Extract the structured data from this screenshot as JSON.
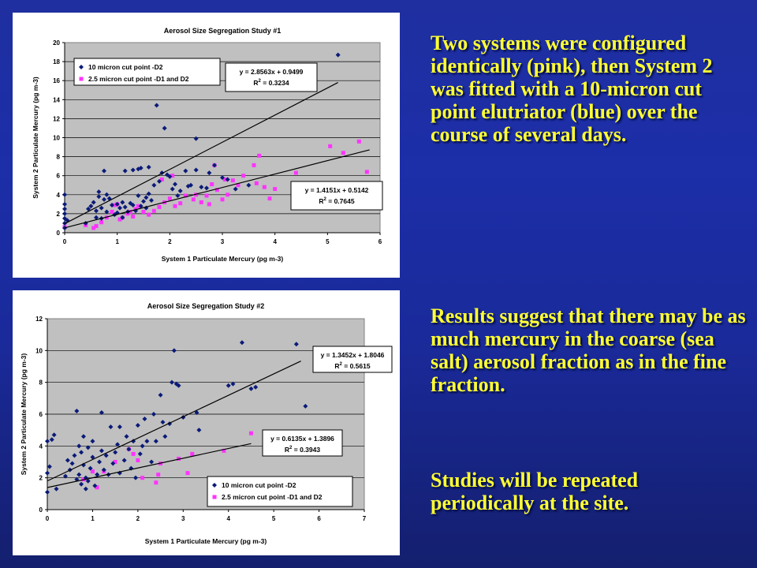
{
  "slide_text": {
    "paragraph1": "Two systems were configured identically (pink), then System 2 was fitted with a 10-micron cut point elutriator (blue) over the course of several days.",
    "paragraph2": "Results suggest that there may be as much mercury in the coarse (sea salt) aerosol fraction as in the fine fraction.",
    "paragraph3": "Studies will be repeated periodically at the site."
  },
  "colors": {
    "series_blue": "#0a1a78",
    "series_pink": "#ff33ff",
    "plot_bg": "#c0c0c0"
  },
  "chart_data": [
    {
      "type": "scatter",
      "title": "Aerosol Size Segregation Study #1",
      "xlabel": "System 1 Particulate Mercury (pg m-3)",
      "ylabel": "System 2 Particulate Mercury (pg m-3)",
      "xlim": [
        0,
        6
      ],
      "ylim": [
        0,
        20
      ],
      "xticks": [
        0,
        1,
        2,
        3,
        4,
        5,
        6
      ],
      "yticks": [
        0,
        2,
        4,
        6,
        8,
        10,
        12,
        14,
        16,
        18,
        20
      ],
      "grid": true,
      "legend_position": "top-left",
      "series": [
        {
          "name": "10 micron cut point -D2",
          "marker": "diamond",
          "color": "#0a1a78",
          "trendline": {
            "equation": "y = 2.8563x + 0.9499",
            "r2": "R",
            "r2_sup": "2",
            "r2_val": " = 0.3234",
            "slope": 2.8563,
            "intercept": 0.9499,
            "x_range": [
              0,
              5.2
            ]
          },
          "points": [
            [
              0,
              0.5
            ],
            [
              0,
              1
            ],
            [
              0,
              1.5
            ],
            [
              0,
              2
            ],
            [
              0,
              2.5
            ],
            [
              0,
              3
            ],
            [
              0,
              4
            ],
            [
              0.05,
              1.3
            ],
            [
              0.4,
              1
            ],
            [
              0.45,
              2.5
            ],
            [
              0.5,
              2.8
            ],
            [
              0.55,
              3.2
            ],
            [
              0.6,
              1.6
            ],
            [
              0.6,
              2.3
            ],
            [
              0.65,
              3.8
            ],
            [
              0.65,
              4.3
            ],
            [
              0.7,
              1.5
            ],
            [
              0.7,
              2.6
            ],
            [
              0.75,
              3.5
            ],
            [
              0.75,
              6.5
            ],
            [
              0.8,
              2.2
            ],
            [
              0.8,
              4
            ],
            [
              0.85,
              3.6
            ],
            [
              0.9,
              2.9
            ],
            [
              0.95,
              1.9
            ],
            [
              1.0,
              3
            ],
            [
              1.0,
              2.1
            ],
            [
              1.05,
              2.6
            ],
            [
              1.1,
              3.2
            ],
            [
              1.1,
              1.6
            ],
            [
              1.15,
              2.7
            ],
            [
              1.2,
              2.2
            ],
            [
              1.15,
              6.5
            ],
            [
              1.25,
              3.1
            ],
            [
              1.3,
              2.9
            ],
            [
              1.35,
              2.3
            ],
            [
              1.3,
              6.6
            ],
            [
              1.4,
              3.9
            ],
            [
              1.4,
              6.7
            ],
            [
              1.45,
              2.8
            ],
            [
              1.45,
              6.8
            ],
            [
              1.5,
              3.3
            ],
            [
              1.55,
              2.6
            ],
            [
              1.55,
              3.7
            ],
            [
              1.6,
              4.1
            ],
            [
              1.6,
              6.9
            ],
            [
              1.65,
              3.4
            ],
            [
              1.7,
              5.0
            ],
            [
              1.75,
              13.4
            ],
            [
              1.8,
              5.4
            ],
            [
              1.85,
              6.3
            ],
            [
              1.9,
              11.0
            ],
            [
              1.95,
              6.1
            ],
            [
              2.0,
              5.9
            ],
            [
              2.05,
              4.6
            ],
            [
              2.1,
              5.1
            ],
            [
              2.15,
              3.9
            ],
            [
              2.2,
              4.4
            ],
            [
              2.3,
              6.5
            ],
            [
              2.35,
              4.9
            ],
            [
              2.4,
              5.0
            ],
            [
              2.5,
              6.6
            ],
            [
              2.5,
              9.9
            ],
            [
              2.6,
              4.8
            ],
            [
              2.7,
              4.7
            ],
            [
              2.75,
              6.3
            ],
            [
              2.85,
              7.1
            ],
            [
              3.0,
              5.8
            ],
            [
              3.1,
              5.6
            ],
            [
              3.25,
              4.6
            ],
            [
              3.5,
              5.0
            ],
            [
              5.2,
              18.7
            ]
          ]
        },
        {
          "name": "2.5 micron cut point -D1 and D2",
          "marker": "square",
          "color": "#ff33ff",
          "trendline": {
            "equation": "y = 1.4151x + 0.5142",
            "r2": "R",
            "r2_sup": "2",
            "r2_val": " = 0.7645",
            "slope": 1.4151,
            "intercept": 0.5142,
            "x_range": [
              0,
              5.8
            ]
          },
          "points": [
            [
              0,
              0.6
            ],
            [
              0.4,
              0.8
            ],
            [
              0.55,
              0.5
            ],
            [
              0.6,
              0.7
            ],
            [
              0.7,
              1.1
            ],
            [
              0.8,
              1.6
            ],
            [
              0.9,
              2.2
            ],
            [
              0.95,
              2.9
            ],
            [
              1.0,
              3.0
            ],
            [
              1.05,
              1.4
            ],
            [
              1.1,
              1.6
            ],
            [
              1.2,
              2.0
            ],
            [
              1.25,
              2.2
            ],
            [
              1.3,
              1.7
            ],
            [
              1.35,
              2.5
            ],
            [
              1.4,
              2.8
            ],
            [
              1.5,
              2.2
            ],
            [
              1.6,
              1.9
            ],
            [
              1.7,
              2.3
            ],
            [
              1.8,
              2.7
            ],
            [
              1.85,
              5.6
            ],
            [
              1.9,
              3.2
            ],
            [
              2.0,
              3.6
            ],
            [
              2.05,
              6.0
            ],
            [
              2.1,
              2.8
            ],
            [
              2.2,
              3.1
            ],
            [
              2.3,
              3.9
            ],
            [
              2.45,
              3.5
            ],
            [
              2.5,
              4.0
            ],
            [
              2.6,
              3.2
            ],
            [
              2.7,
              3.9
            ],
            [
              2.75,
              3.0
            ],
            [
              2.8,
              5.1
            ],
            [
              2.85,
              7.1
            ],
            [
              2.9,
              4.5
            ],
            [
              3.0,
              3.5
            ],
            [
              3.05,
              5.6
            ],
            [
              3.1,
              4.0
            ],
            [
              3.2,
              5.5
            ],
            [
              3.3,
              5.0
            ],
            [
              3.4,
              6.0
            ],
            [
              3.6,
              7.1
            ],
            [
              3.65,
              5.2
            ],
            [
              3.7,
              8.1
            ],
            [
              3.8,
              4.8
            ],
            [
              3.9,
              3.6
            ],
            [
              4.0,
              4.6
            ],
            [
              4.4,
              6.3
            ],
            [
              5.05,
              9.1
            ],
            [
              5.3,
              8.4
            ],
            [
              5.6,
              9.6
            ],
            [
              5.75,
              6.4
            ]
          ]
        }
      ]
    },
    {
      "type": "scatter",
      "title": "Aerosol Size Segregation Study #2",
      "xlabel": "System 1 Particulate Mercury (pg m-3)",
      "ylabel": "System 2 Particulate Mercury (pg m-3)",
      "xlim": [
        0,
        7
      ],
      "ylim": [
        0,
        12
      ],
      "xticks": [
        0,
        1,
        2,
        3,
        4,
        5,
        6,
        7
      ],
      "yticks": [
        0,
        2,
        4,
        6,
        8,
        10,
        12
      ],
      "grid": true,
      "legend_position": "bottom-right",
      "series": [
        {
          "name": "10 micron cut point -D2",
          "marker": "diamond",
          "color": "#0a1a78",
          "trendline": {
            "equation": "y = 1.3452x + 1.8046",
            "r2": "R",
            "r2_sup": "2",
            "r2_val": " = 0.5615",
            "slope": 1.3452,
            "intercept": 1.8046,
            "x_range": [
              0,
              5.6
            ]
          },
          "points": [
            [
              0,
              1.1
            ],
            [
              0,
              2.3
            ],
            [
              0,
              4.3
            ],
            [
              0.05,
              2.7
            ],
            [
              0.1,
              4.4
            ],
            [
              0.15,
              4.7
            ],
            [
              0.2,
              1.3
            ],
            [
              0.4,
              2.1
            ],
            [
              0.45,
              3.1
            ],
            [
              0.5,
              2.5
            ],
            [
              0.55,
              2.9
            ],
            [
              0.6,
              3.4
            ],
            [
              0.65,
              1.9
            ],
            [
              0.65,
              6.2
            ],
            [
              0.7,
              2.2
            ],
            [
              0.7,
              4.0
            ],
            [
              0.75,
              1.6
            ],
            [
              0.75,
              3.6
            ],
            [
              0.8,
              2.8
            ],
            [
              0.8,
              4.6
            ],
            [
              0.85,
              1.3
            ],
            [
              0.85,
              2.0
            ],
            [
              0.9,
              3.9
            ],
            [
              0.9,
              1.8
            ],
            [
              0.95,
              2.6
            ],
            [
              1.0,
              3.3
            ],
            [
              1.0,
              4.3
            ],
            [
              1.05,
              1.5
            ],
            [
              1.1,
              2.2
            ],
            [
              1.15,
              3.0
            ],
            [
              1.2,
              3.7
            ],
            [
              1.2,
              6.1
            ],
            [
              1.25,
              2.5
            ],
            [
              1.3,
              3.4
            ],
            [
              1.35,
              2.2
            ],
            [
              1.4,
              5.2
            ],
            [
              1.45,
              2.9
            ],
            [
              1.5,
              3.6
            ],
            [
              1.55,
              4.1
            ],
            [
              1.6,
              2.3
            ],
            [
              1.6,
              5.2
            ],
            [
              1.7,
              3.1
            ],
            [
              1.75,
              4.6
            ],
            [
              1.8,
              3.8
            ],
            [
              1.85,
              2.6
            ],
            [
              1.9,
              4.3
            ],
            [
              1.95,
              2.0
            ],
            [
              2.0,
              5.3
            ],
            [
              2.05,
              3.5
            ],
            [
              2.1,
              4.0
            ],
            [
              2.15,
              5.7
            ],
            [
              2.2,
              4.3
            ],
            [
              2.3,
              3.0
            ],
            [
              2.35,
              6.0
            ],
            [
              2.4,
              4.3
            ],
            [
              2.5,
              7.2
            ],
            [
              2.55,
              5.5
            ],
            [
              2.6,
              4.6
            ],
            [
              2.7,
              5.4
            ],
            [
              2.75,
              8.0
            ],
            [
              2.8,
              10.0
            ],
            [
              2.85,
              7.9
            ],
            [
              2.9,
              7.8
            ],
            [
              3.0,
              5.8
            ],
            [
              3.3,
              6.1
            ],
            [
              3.35,
              5.0
            ],
            [
              4.0,
              7.8
            ],
            [
              4.1,
              7.9
            ],
            [
              4.3,
              10.5
            ],
            [
              4.5,
              7.6
            ],
            [
              4.6,
              7.7
            ],
            [
              5.5,
              10.4
            ],
            [
              5.7,
              6.5
            ]
          ]
        },
        {
          "name": "2.5 micron cut point -D1 and D2",
          "marker": "square",
          "color": "#ff33ff",
          "trendline": {
            "equation": "y = 0.6135x + 1.3896",
            "r2": "R",
            "r2_sup": "2",
            "r2_val": " = 0.3943",
            "slope": 0.6135,
            "intercept": 1.3896,
            "x_range": [
              0,
              4.5
            ]
          },
          "points": [
            [
              0.8,
              1.9
            ],
            [
              1.0,
              2.4
            ],
            [
              1.1,
              1.4
            ],
            [
              1.25,
              2.4
            ],
            [
              1.5,
              3.0
            ],
            [
              1.8,
              3.8
            ],
            [
              1.9,
              3.5
            ],
            [
              2.0,
              3.1
            ],
            [
              2.1,
              2.0
            ],
            [
              2.4,
              1.7
            ],
            [
              2.45,
              2.2
            ],
            [
              2.5,
              2.9
            ],
            [
              2.9,
              3.2
            ],
            [
              3.1,
              2.3
            ],
            [
              3.2,
              3.5
            ],
            [
              3.9,
              3.7
            ],
            [
              4.5,
              4.8
            ]
          ]
        }
      ]
    }
  ]
}
